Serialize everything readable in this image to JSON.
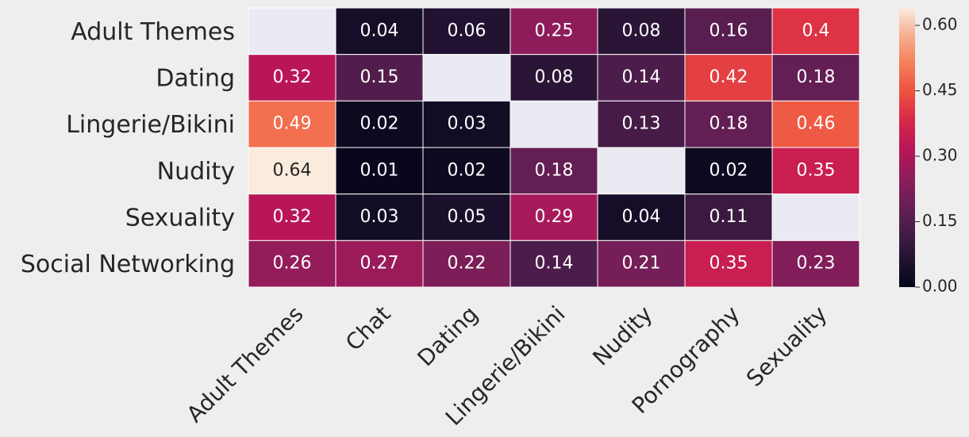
{
  "chart_data": {
    "type": "heatmap",
    "x_categories": [
      "Adult Themes",
      "Chat",
      "Dating",
      "Lingerie/Bikini",
      "Nudity",
      "Pornography",
      "Sexuality"
    ],
    "y_categories": [
      "Adult Themes",
      "Dating",
      "Lingerie/Bikini",
      "Nudity",
      "Sexuality",
      "Social Networking"
    ],
    "values": [
      [
        null,
        0.04,
        0.06,
        0.25,
        0.08,
        0.16,
        0.4
      ],
      [
        0.32,
        0.15,
        null,
        0.08,
        0.14,
        0.42,
        0.18
      ],
      [
        0.49,
        0.02,
        0.03,
        null,
        0.13,
        0.18,
        0.46
      ],
      [
        0.64,
        0.01,
        0.02,
        0.18,
        null,
        0.02,
        0.35
      ],
      [
        0.32,
        0.03,
        0.05,
        0.29,
        0.04,
        0.11,
        null
      ],
      [
        0.26,
        0.27,
        0.22,
        0.14,
        0.21,
        0.35,
        0.23
      ]
    ],
    "colormap": "rocket",
    "zlim": [
      0,
      0.64
    ],
    "zticks": [
      {
        "value": 0,
        "label": "0.00"
      },
      {
        "value": 0.15,
        "label": "0.15"
      },
      {
        "value": 0.3,
        "label": "0.30"
      },
      {
        "value": 0.45,
        "label": "0.45"
      },
      {
        "value": 0.6,
        "label": "0.60"
      }
    ]
  }
}
